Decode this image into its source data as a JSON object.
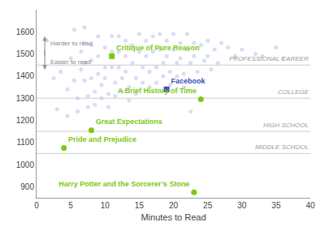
{
  "chart_data": {
    "type": "scatter",
    "xlabel": "Minutes to Read",
    "xlim": [
      0,
      40
    ],
    "ylim": [
      850,
      1700
    ],
    "xticks": [
      0,
      5,
      10,
      15,
      20,
      25,
      30,
      35,
      40
    ],
    "yticks": [
      900,
      1000,
      1100,
      1200,
      1300,
      1400,
      1500,
      1600
    ],
    "grid": false,
    "bands": [
      {
        "y": 1050,
        "label": "MIDDLE SCHOOL"
      },
      {
        "y": 1150,
        "label": "HIGH SCHOOL"
      },
      {
        "y": 1300,
        "label": "COLLEGE"
      },
      {
        "y": 1450,
        "label": "PROFESSIONAL CAREER"
      }
    ],
    "points": {
      "color": "#c0c4f0",
      "x": [
        1.5,
        2.5,
        3,
        3.5,
        4.5,
        4.5,
        5,
        5.5,
        5.5,
        6,
        6,
        6.5,
        6.5,
        7,
        7,
        7,
        7,
        7.5,
        7.5,
        8,
        8,
        8,
        8.5,
        8.5,
        9,
        9,
        9,
        9.5,
        9.5,
        10,
        10,
        10,
        10.5,
        10.5,
        11,
        11,
        11,
        11.5,
        11.5,
        12,
        12,
        12,
        12.5,
        12.5,
        13,
        13,
        13,
        13.5,
        13.5,
        14,
        14,
        14.5,
        14.5,
        15,
        15,
        15.5,
        15.5,
        16,
        16,
        16.5,
        16.5,
        17,
        17,
        17.5,
        17.5,
        18,
        18,
        18.5,
        18.5,
        19,
        19,
        19.5,
        19.5,
        20,
        20,
        20.5,
        20.5,
        21,
        21,
        21.5,
        21.5,
        22,
        22,
        22.5,
        22.5,
        23,
        23,
        23.5,
        24,
        24.5,
        25,
        25,
        25.5,
        26,
        26.5,
        27,
        28,
        29,
        30,
        32,
        33,
        35,
        36
      ],
      "values": [
        1560,
        1390,
        1250,
        1420,
        1340,
        1220,
        1480,
        1610,
        1380,
        1300,
        1240,
        1510,
        1430,
        1620,
        1550,
        1460,
        1380,
        1310,
        1260,
        1540,
        1470,
        1390,
        1330,
        1270,
        1580,
        1490,
        1410,
        1360,
        1300,
        1530,
        1440,
        1390,
        1320,
        1260,
        1580,
        1510,
        1440,
        1370,
        1310,
        1580,
        1510,
        1440,
        1390,
        1330,
        1560,
        1490,
        1420,
        1350,
        1290,
        1540,
        1460,
        1390,
        1320,
        1590,
        1510,
        1440,
        1370,
        1560,
        1490,
        1420,
        1350,
        1580,
        1510,
        1440,
        1370,
        1590,
        1520,
        1460,
        1400,
        1560,
        1490,
        1420,
        1360,
        1590,
        1520,
        1460,
        1400,
        1550,
        1480,
        1410,
        1350,
        1590,
        1520,
        1460,
        1240,
        1550,
        1490,
        1420,
        1540,
        1470,
        1560,
        1490,
        1430,
        1520,
        1460,
        1550,
        1530,
        1490,
        1520,
        1500,
        1490,
        1530,
        1480
      ]
    },
    "highlighted": [
      {
        "x": 11,
        "y": 1490,
        "label": "Critique of Pure Reason",
        "color": "#7ec810",
        "marker": "square"
      },
      {
        "x": 19,
        "y": 1340,
        "label": "Facebook",
        "color": "#3a4fc0",
        "marker": "square"
      },
      {
        "x": 24,
        "y": 1295,
        "label": "A Brief History of Time",
        "color": "#7ec810",
        "marker": "circle"
      },
      {
        "x": 8,
        "y": 1155,
        "label": "Great Expectations",
        "color": "#7ec810",
        "marker": "circle"
      },
      {
        "x": 4,
        "y": 1075,
        "label": "Pride and Prejudice",
        "color": "#7ec810",
        "marker": "circle"
      },
      {
        "x": 23,
        "y": 875,
        "label": "Harry Potter and the Sorcerer’s Stone",
        "color": "#7ec810",
        "marker": "circle"
      }
    ],
    "annotations": [
      {
        "text": "Harder to read",
        "direction": "up"
      },
      {
        "text": "Easier to read",
        "direction": "down"
      }
    ]
  }
}
